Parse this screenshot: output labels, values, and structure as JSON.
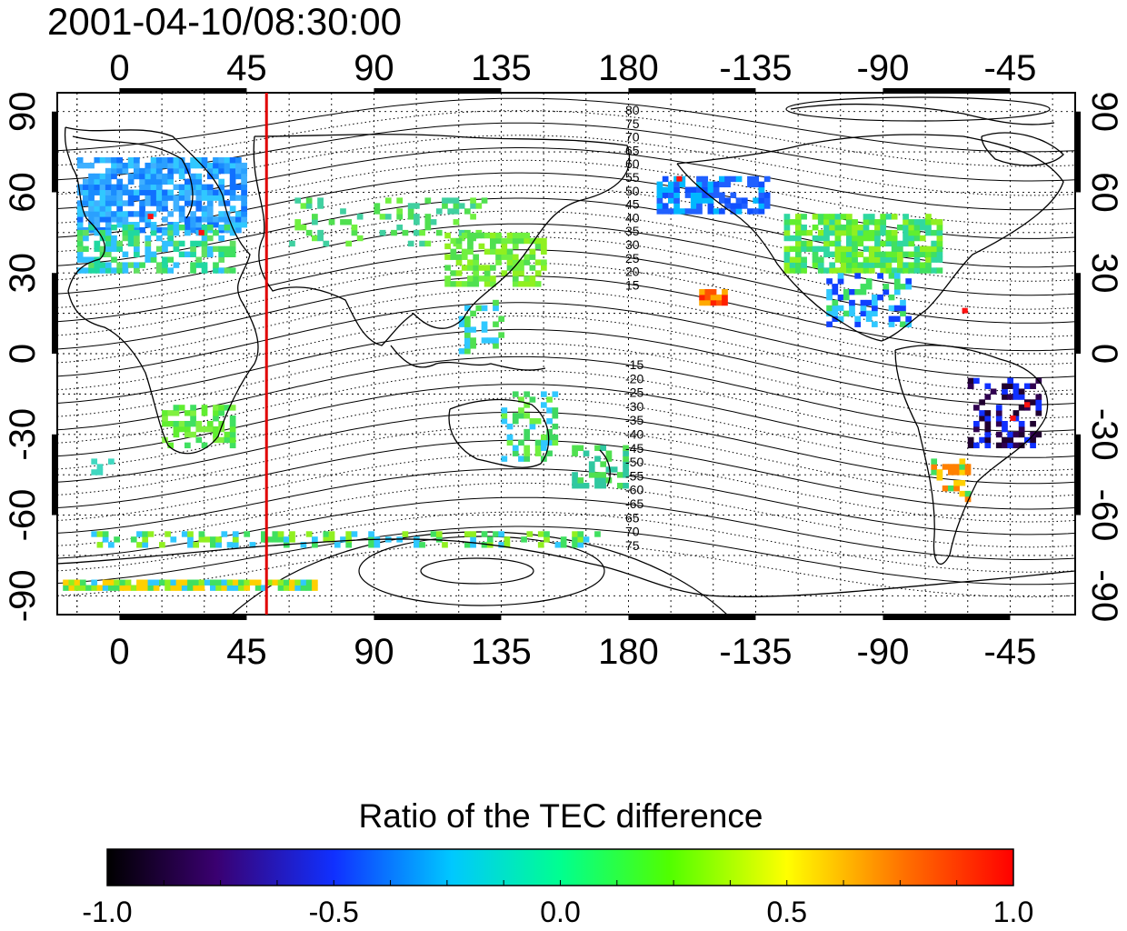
{
  "timestamp": "2001-04-10/08:30:00",
  "map": {
    "lon_tick_labels": [
      "0",
      "45",
      "90",
      "135",
      "180",
      "-135",
      "-90",
      "-45"
    ],
    "lat_tick_labels": [
      "90",
      "60",
      "30",
      "0",
      "-30",
      "-60",
      "-90"
    ],
    "contour_labels_north": [
      "80",
      "75",
      "70",
      "65",
      "60",
      "55",
      "50",
      "45",
      "40",
      "35",
      "30",
      "25",
      "20",
      "15"
    ],
    "contour_labels_south": [
      "-15",
      "-20",
      "-25",
      "-30",
      "-35",
      "-40",
      "-45",
      "-50",
      "-55",
      "-60",
      "-65",
      "65",
      "70",
      "75"
    ],
    "marker_longitude": 52,
    "marker_color": "#e00000"
  },
  "colorbar": {
    "title": "Ratio of the TEC difference",
    "tick_labels": [
      "-1.0",
      "-0.5",
      "0.0",
      "0.5",
      "1.0"
    ],
    "range": [
      -1.0,
      1.0
    ]
  },
  "colors": {
    "low": "#000000",
    "mid_low": "#0020ff",
    "zero": "#00ffff",
    "mid_high": "#ffff00",
    "high": "#ff0000"
  }
}
